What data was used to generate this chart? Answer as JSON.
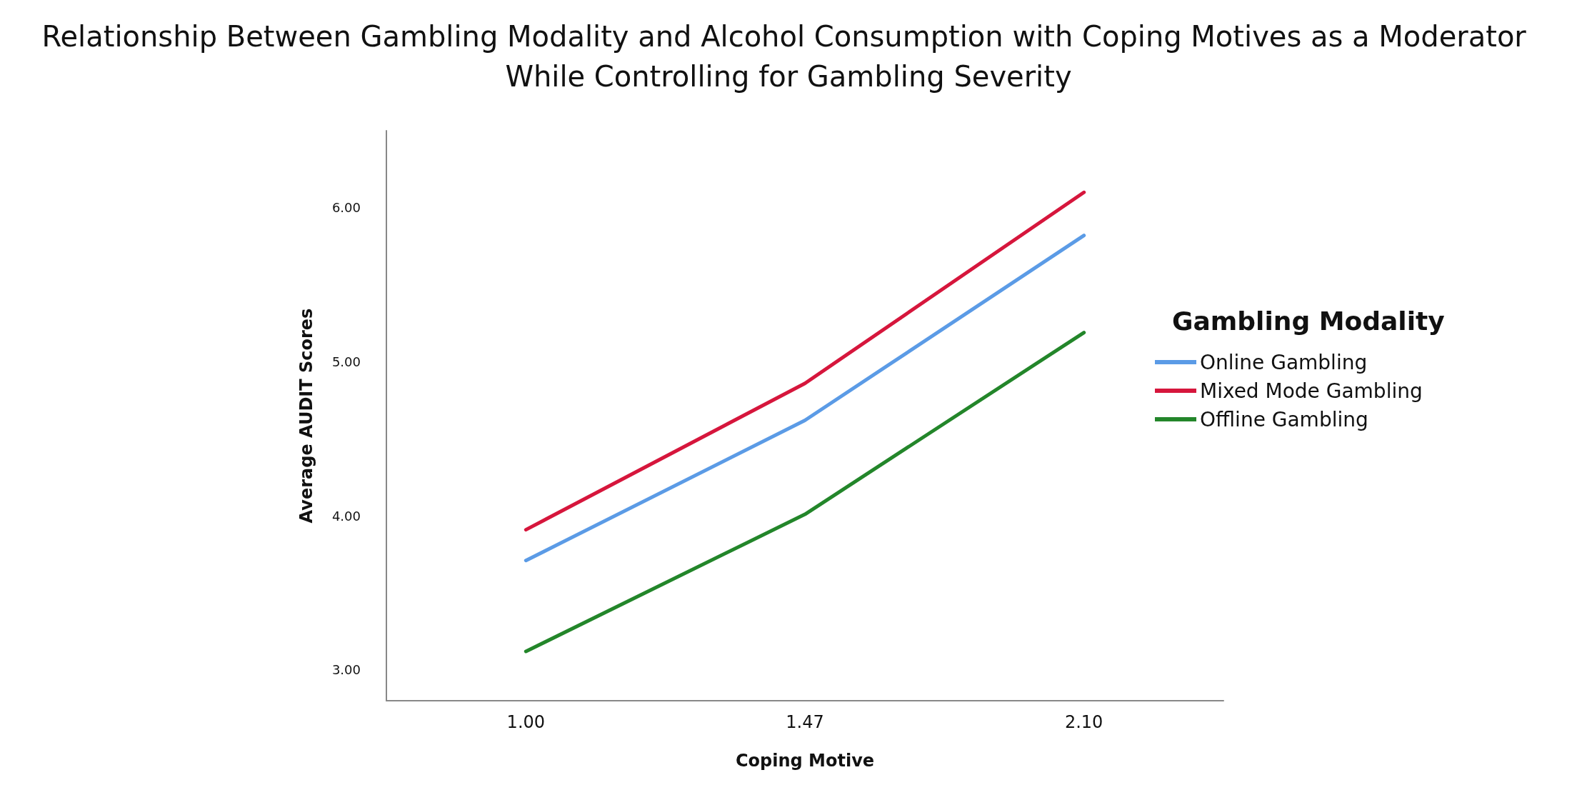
{
  "chart_data": {
    "type": "line",
    "title": "Relationship Between Gambling Modality and Alcohol Consumption with Coping Motives as a Moderator While Controlling for Gambling Severity",
    "xlabel": "Coping Motive",
    "ylabel": "Average AUDIT Scores",
    "legend_title": "Gambling Modality",
    "categories": [
      "1.00",
      "1.47",
      "2.10"
    ],
    "series": [
      {
        "name": "Online Gambling",
        "color": "#5b9be6",
        "values": [
          3.71,
          4.62,
          5.82
        ]
      },
      {
        "name": "Mixed Mode Gambling",
        "color": "#d6163c",
        "values": [
          3.91,
          4.86,
          6.1
        ]
      },
      {
        "name": "Offline Gambling",
        "color": "#23862a",
        "values": [
          3.12,
          4.01,
          5.19
        ]
      }
    ],
    "ylim": [
      2.8,
      6.5
    ],
    "yticks": [
      {
        "value": 3,
        "label": "3.00"
      },
      {
        "value": 4,
        "label": "4.00"
      },
      {
        "value": 5,
        "label": "5.00"
      },
      {
        "value": 6,
        "label": "6.00"
      }
    ],
    "grid": false,
    "legend": "right",
    "marker": "none",
    "line_style": "solid"
  }
}
